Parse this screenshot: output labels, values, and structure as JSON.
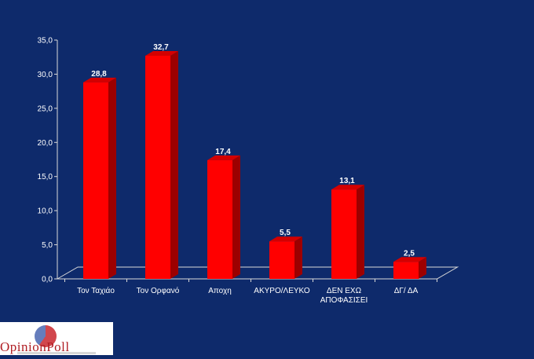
{
  "chart_data": {
    "type": "bar",
    "categories": [
      "Τον Ταχιάο",
      "Τον Ορφανό",
      "Αποχη",
      "ΑΚΥΡΟ/ΛΕΥΚΟ",
      "ΔΕΝ ΕΧΩ\nΑΠΟΦΑΣΙΣΕΙ",
      "ΔΓ/ ΔΑ"
    ],
    "values": [
      28.8,
      32.7,
      17.4,
      5.5,
      13.1,
      2.5
    ],
    "value_labels": [
      "28,8",
      "32,7",
      "17,4",
      "5,5",
      "13,1",
      "2,5"
    ],
    "y_ticks": [
      "0,0",
      "5,0",
      "10,0",
      "15,0",
      "20,0",
      "25,0",
      "30,0",
      "35,0"
    ],
    "ylim": [
      0,
      35
    ],
    "grid": false,
    "bar_color": "#ff0000",
    "bar_side_color": "#9c0000",
    "bar_top_color": "#d40000",
    "background_color": "#0e2a6b"
  },
  "logo": {
    "text": "OpinionPoll"
  }
}
